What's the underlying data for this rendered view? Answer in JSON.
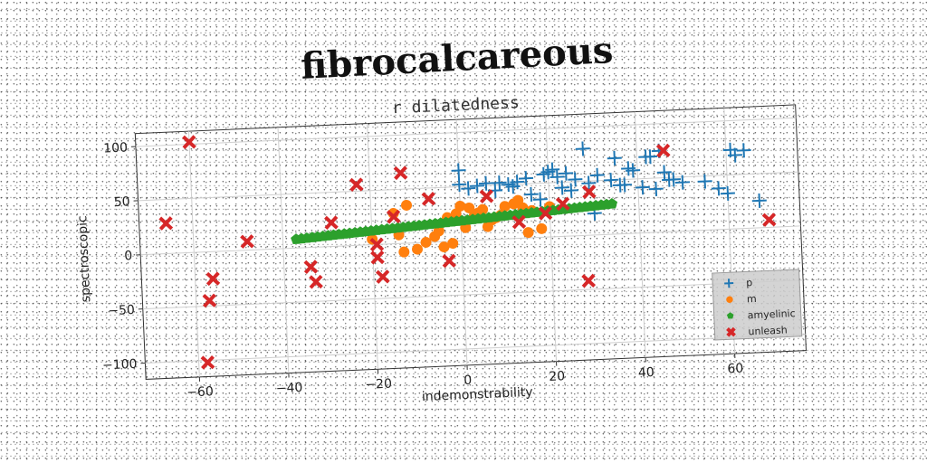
{
  "chart_data": {
    "type": "scatter",
    "title": "fibrocalcareous",
    "subtitle": "r dilatedness",
    "xlabel": "indemonstrability",
    "ylabel": "spectroscopic",
    "xlim": [
      -72,
      76
    ],
    "ylim": [
      -115,
      112
    ],
    "xticks": [
      -60,
      -40,
      -20,
      0,
      20,
      40,
      60
    ],
    "yticks": [
      -100,
      -50,
      0,
      50,
      100
    ],
    "xtick_labels": [
      "−60",
      "−40",
      "−20",
      "0",
      "20",
      "40",
      "60"
    ],
    "ytick_labels": [
      "−100",
      "−50",
      "0",
      "50",
      "100"
    ],
    "grid": true,
    "legend_position": "bottom-right",
    "series": [
      {
        "name": "p",
        "marker": "plus",
        "color": "#1f77b4",
        "points": [
          [
            0,
            52
          ],
          [
            0,
            65
          ],
          [
            2,
            48
          ],
          [
            4,
            50
          ],
          [
            6,
            52
          ],
          [
            8,
            45
          ],
          [
            9,
            52
          ],
          [
            11,
            50
          ],
          [
            12,
            48
          ],
          [
            13,
            52
          ],
          [
            15,
            55
          ],
          [
            16,
            40
          ],
          [
            18,
            35
          ],
          [
            19,
            58
          ],
          [
            20,
            60
          ],
          [
            21,
            62
          ],
          [
            22,
            55
          ],
          [
            23,
            45
          ],
          [
            24,
            58
          ],
          [
            25,
            42
          ],
          [
            26,
            52
          ],
          [
            28,
            80
          ],
          [
            29,
            48
          ],
          [
            30,
            20
          ],
          [
            31,
            55
          ],
          [
            34,
            50
          ],
          [
            35,
            70
          ],
          [
            36,
            45
          ],
          [
            37,
            45
          ],
          [
            38,
            60
          ],
          [
            39,
            58
          ],
          [
            41,
            42
          ],
          [
            42,
            70
          ],
          [
            43,
            70
          ],
          [
            44,
            40
          ],
          [
            45,
            75
          ],
          [
            46,
            55
          ],
          [
            47,
            48
          ],
          [
            48,
            48
          ],
          [
            50,
            45
          ],
          [
            55,
            45
          ],
          [
            58,
            38
          ],
          [
            60,
            33
          ],
          [
            61,
            73
          ],
          [
            62,
            68
          ],
          [
            64,
            72
          ],
          [
            67,
            25
          ]
        ]
      },
      {
        "name": "m",
        "marker": "circle",
        "color": "#ff7f0e",
        "points": [
          [
            -20,
            5
          ],
          [
            -15,
            28
          ],
          [
            -14,
            8
          ],
          [
            -12,
            35
          ],
          [
            -13,
            -8
          ],
          [
            -10,
            -6
          ],
          [
            -8,
            0
          ],
          [
            -6,
            5
          ],
          [
            -5,
            10
          ],
          [
            -4,
            -5
          ],
          [
            -3,
            22
          ],
          [
            -2,
            -2
          ],
          [
            -1,
            25
          ],
          [
            0,
            32
          ],
          [
            1,
            12
          ],
          [
            2,
            30
          ],
          [
            3,
            22
          ],
          [
            4,
            25
          ],
          [
            5,
            28
          ],
          [
            6,
            12
          ],
          [
            7,
            18
          ],
          [
            8,
            20
          ],
          [
            9,
            22
          ],
          [
            10,
            30
          ],
          [
            12,
            32
          ],
          [
            13,
            35
          ],
          [
            14,
            28
          ],
          [
            15,
            5
          ],
          [
            16,
            25
          ],
          [
            18,
            8
          ],
          [
            20,
            28
          ]
        ]
      },
      {
        "name": "amyelinic",
        "marker": "pentagon",
        "color": "#2ca02c",
        "linear": {
          "x_start": -37,
          "x_end": 34,
          "count": 60,
          "y_start": 8,
          "y_end": 28
        }
      },
      {
        "name": "unleash",
        "marker": "x",
        "color": "#d62728",
        "points": [
          [
            -66,
            28
          ],
          [
            -60,
            102
          ],
          [
            -57,
            -45
          ],
          [
            -56,
            -25
          ],
          [
            -58,
            -102
          ],
          [
            -48,
            8
          ],
          [
            -34,
            -18
          ],
          [
            -33,
            -32
          ],
          [
            -29,
            22
          ],
          [
            -23,
            56
          ],
          [
            -19,
            0
          ],
          [
            -19,
            -12
          ],
          [
            -18,
            -30
          ],
          [
            -15,
            25
          ],
          [
            -13,
            65
          ],
          [
            -7,
            40
          ],
          [
            -3,
            -18
          ],
          [
            6,
            40
          ],
          [
            13,
            15
          ],
          [
            19,
            22
          ],
          [
            23,
            30
          ],
          [
            28,
            -42
          ],
          [
            29,
            40
          ],
          [
            46,
            75
          ],
          [
            69,
            7
          ]
        ]
      }
    ]
  }
}
